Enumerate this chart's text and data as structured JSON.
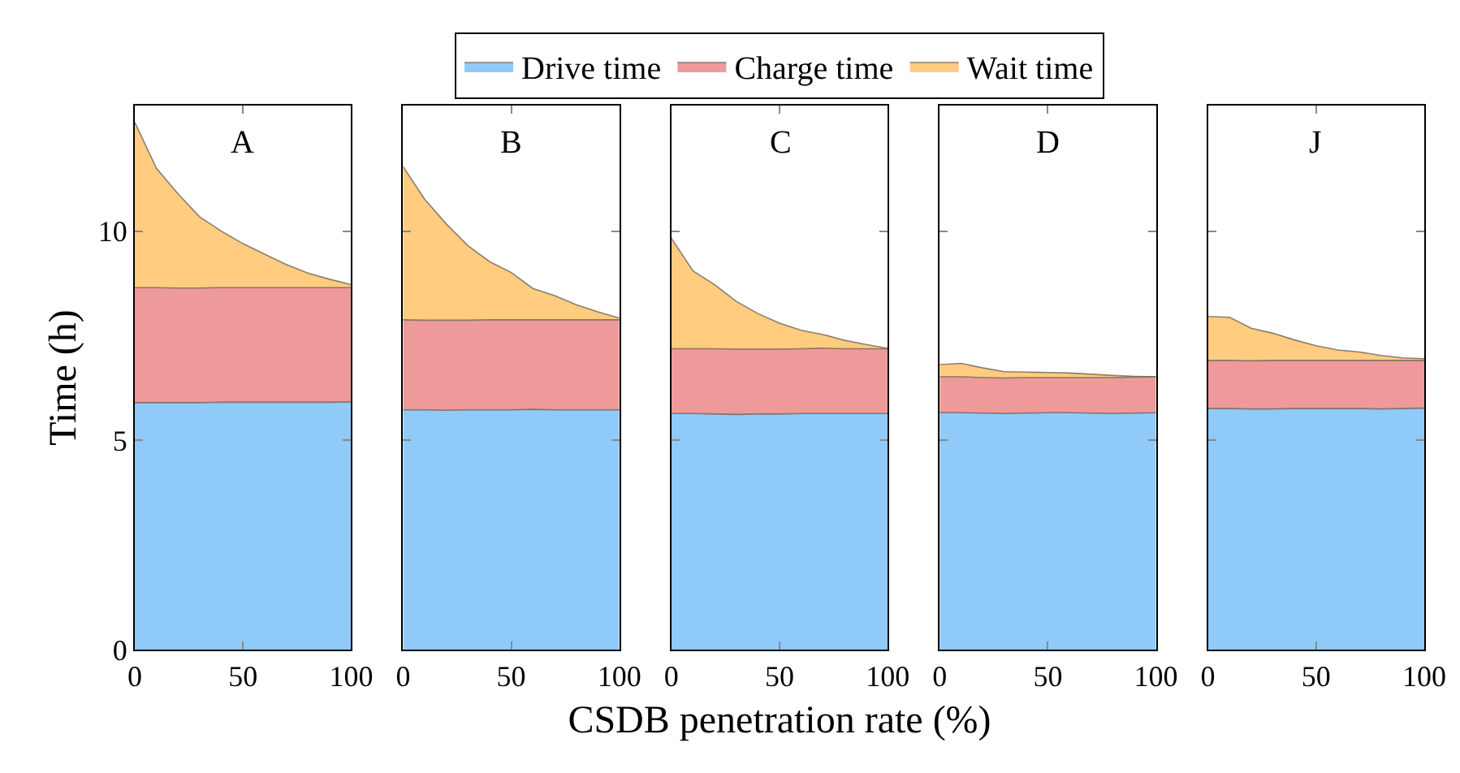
{
  "chart_data": [
    {
      "type": "area",
      "stacked": true,
      "title": "A",
      "ylabel": "Time (h)",
      "legend": "top",
      "x": [
        0,
        10,
        20,
        30,
        40,
        50,
        60,
        70,
        80,
        90,
        100
      ],
      "xlim": [
        0,
        100
      ],
      "xticks": [
        0,
        50,
        100
      ],
      "ylim": [
        0,
        13
      ],
      "yticks": [
        0,
        5,
        10
      ],
      "series": [
        {
          "name": "Drive time",
          "color": "#90caf9",
          "values": [
            5.9,
            5.9,
            5.9,
            5.9,
            5.91,
            5.91,
            5.91,
            5.91,
            5.91,
            5.91,
            5.92
          ]
        },
        {
          "name": "Charge time",
          "color": "#ef9a9a",
          "values": [
            2.75,
            2.75,
            2.74,
            2.74,
            2.74,
            2.74,
            2.74,
            2.74,
            2.74,
            2.74,
            2.73
          ]
        },
        {
          "name": "Wait time",
          "color": "#ffcc80",
          "values": [
            3.95,
            2.85,
            2.25,
            1.7,
            1.35,
            1.05,
            0.8,
            0.55,
            0.35,
            0.2,
            0.07
          ]
        }
      ]
    },
    {
      "type": "area",
      "stacked": true,
      "title": "B",
      "tick_labels": "x",
      "x": [
        0,
        10,
        20,
        30,
        40,
        50,
        60,
        70,
        80,
        90,
        100
      ],
      "xlim": [
        0,
        100
      ],
      "xticks": [
        0,
        50,
        100
      ],
      "ylim": [
        0,
        13
      ],
      "yticks": [
        0,
        5,
        10
      ],
      "series": [
        {
          "color": "#90caf9",
          "values": [
            5.73,
            5.73,
            5.72,
            5.73,
            5.73,
            5.73,
            5.74,
            5.73,
            5.73,
            5.73,
            5.73
          ]
        },
        {
          "color": "#ef9a9a",
          "values": [
            2.15,
            2.14,
            2.15,
            2.14,
            2.15,
            2.15,
            2.14,
            2.15,
            2.15,
            2.15,
            2.15
          ]
        },
        {
          "color": "#ffcc80",
          "values": [
            3.66,
            2.89,
            2.3,
            1.78,
            1.39,
            1.13,
            0.75,
            0.58,
            0.36,
            0.19,
            0.04
          ]
        }
      ]
    },
    {
      "type": "area",
      "stacked": true,
      "title": "C",
      "xlabel": "CSDB penetration rate (%)",
      "tick_labels": "x",
      "x": [
        0,
        10,
        20,
        30,
        40,
        50,
        60,
        70,
        80,
        90,
        100
      ],
      "xlim": [
        0,
        100
      ],
      "xticks": [
        0,
        50,
        100
      ],
      "ylim": [
        0,
        13
      ],
      "yticks": [
        0,
        5,
        10
      ],
      "series": [
        {
          "color": "#90caf9",
          "values": [
            5.64,
            5.64,
            5.63,
            5.62,
            5.63,
            5.63,
            5.64,
            5.64,
            5.64,
            5.64,
            5.64
          ]
        },
        {
          "color": "#ef9a9a",
          "values": [
            1.55,
            1.55,
            1.56,
            1.56,
            1.55,
            1.55,
            1.55,
            1.56,
            1.55,
            1.55,
            1.55
          ]
        },
        {
          "color": "#ffcc80",
          "values": [
            2.64,
            1.86,
            1.53,
            1.14,
            0.85,
            0.62,
            0.44,
            0.33,
            0.2,
            0.1,
            0.01
          ]
        }
      ]
    },
    {
      "type": "area",
      "stacked": true,
      "title": "D",
      "tick_labels": "x",
      "x": [
        0,
        10,
        20,
        30,
        40,
        50,
        60,
        70,
        80,
        90,
        100
      ],
      "xlim": [
        0,
        100
      ],
      "xticks": [
        0,
        50,
        100
      ],
      "ylim": [
        0,
        13
      ],
      "yticks": [
        0,
        5,
        10
      ],
      "series": [
        {
          "color": "#90caf9",
          "values": [
            5.66,
            5.66,
            5.65,
            5.64,
            5.65,
            5.66,
            5.66,
            5.65,
            5.64,
            5.65,
            5.66
          ]
        },
        {
          "color": "#ef9a9a",
          "values": [
            0.86,
            0.86,
            0.85,
            0.85,
            0.85,
            0.84,
            0.84,
            0.85,
            0.86,
            0.86,
            0.86
          ]
        },
        {
          "color": "#ffcc80",
          "values": [
            0.29,
            0.32,
            0.23,
            0.15,
            0.13,
            0.12,
            0.11,
            0.08,
            0.05,
            0.02,
            0.0
          ]
        }
      ]
    },
    {
      "type": "area",
      "stacked": true,
      "title": "J",
      "tick_labels": "x",
      "x": [
        0,
        10,
        20,
        30,
        40,
        50,
        60,
        70,
        80,
        90,
        100
      ],
      "xlim": [
        0,
        100
      ],
      "xticks": [
        0,
        50,
        100
      ],
      "ylim": [
        0,
        13
      ],
      "yticks": [
        0,
        5,
        10
      ],
      "series": [
        {
          "color": "#90caf9",
          "values": [
            5.76,
            5.76,
            5.75,
            5.75,
            5.76,
            5.76,
            5.76,
            5.76,
            5.75,
            5.76,
            5.77
          ]
        },
        {
          "color": "#ef9a9a",
          "values": [
            1.15,
            1.15,
            1.15,
            1.16,
            1.15,
            1.15,
            1.15,
            1.15,
            1.16,
            1.15,
            1.14
          ]
        },
        {
          "color": "#ffcc80",
          "values": [
            1.05,
            1.03,
            0.78,
            0.65,
            0.49,
            0.35,
            0.25,
            0.2,
            0.12,
            0.06,
            0.04
          ]
        }
      ]
    }
  ]
}
